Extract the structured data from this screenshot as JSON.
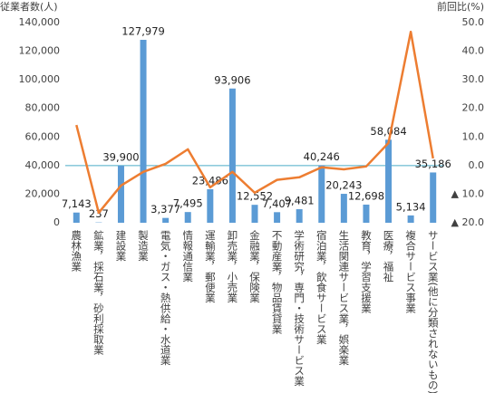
{
  "chart_data": {
    "type": "bar-line",
    "y_label": "従業者数(人)",
    "y2_label": "前回比(%)",
    "categories": [
      "農林漁業",
      "鉱業，採石業，砂利採取業",
      "建設業",
      "製造業",
      "電気・ガス・熱供給・水道業",
      "情報通信業",
      "運輸業，郵便業",
      "卸売業，小売業",
      "金融業，保険業",
      "不動産業，物品賃貸業",
      "学術研究，専門・技術サービス業",
      "宿泊業，飲食サービス業",
      "生活関連サービス業，娯楽業",
      "教育，学習支援業",
      "医療，福祉",
      "複合サービス事業",
      "サービス業(他に分類されないもの)"
    ],
    "series": [
      {
        "color": "#5b9bd5",
        "values": [
          7143,
          237,
          39900,
          127979,
          3377,
          7495,
          23486,
          93906,
          12552,
          7407,
          9481,
          40246,
          20243,
          12698,
          58084,
          5134,
          35186
        ],
        "value_labels": [
          "7,143",
          "237",
          "39,900",
          "127,979",
          "3,377",
          "7,495",
          "23,486",
          "93,906",
          "12,552",
          "7,407",
          "9,481",
          "40,246",
          "20,243",
          "12,698",
          "58,084",
          "5,134",
          "35,186"
        ]
      },
      {
        "type": "line",
        "axis": "y2",
        "color": "#ed7d31",
        "values": [
          14.2,
          -16.5,
          -7,
          -2.2,
          0.6,
          5.7,
          -7.6,
          -2.2,
          -9.5,
          -5,
          -4.1,
          -0.6,
          -1.3,
          -0.3,
          7.9,
          46.8,
          2.5
        ]
      }
    ],
    "ylim": [
      0,
      140000
    ],
    "yticks": [
      0,
      {
        "value": 20000,
        "label": "20,000"
      },
      {
        "value": 40000,
        "label": "40,000"
      },
      {
        "value": 60000,
        "label": "60,000"
      },
      {
        "value": 80000,
        "label": "80,000"
      },
      {
        "value": 100000,
        "label": "100,000"
      },
      {
        "value": 120000,
        "label": "120,000"
      },
      {
        "value": 140000,
        "label": "140,000"
      }
    ],
    "y2lim": [
      -20,
      50
    ],
    "y2ticks": [
      {
        "value": -20,
        "label": "▲ 20.0"
      },
      {
        "value": -10,
        "label": "▲ 10.0"
      },
      {
        "value": 0,
        "label": "0.0"
      },
      {
        "value": 10,
        "label": "10.0"
      },
      {
        "value": 20,
        "label": "20.0"
      },
      {
        "value": 30,
        "label": "30.0"
      },
      {
        "value": 40,
        "label": "40.0"
      },
      {
        "value": 50,
        "label": "50.0"
      }
    ],
    "zero_line_color": "#4bacc6"
  }
}
